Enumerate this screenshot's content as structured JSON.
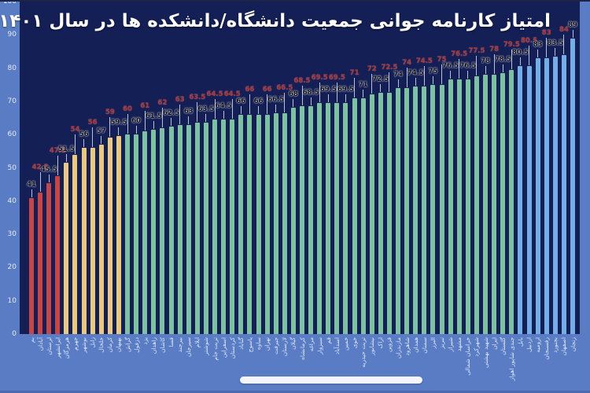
{
  "title": "امتیاز کارنامه جوانی جمعیت دانشگاه/دانشکده ها در سال ۱۴۰۱",
  "colors": {
    "background": "#5a7cc5",
    "plot_bg": "#131f55",
    "bar_red": "#c84545",
    "bar_yellow": "#eac97f",
    "bar_green": "#7cc2a0",
    "bar_blue": "#74aee8",
    "value_label_black": "#0b0b16",
    "value_label_red": "#b23232",
    "axis_label": "#e6ecf8",
    "x_label": "#d9e6fa",
    "title_color": "#ffffff",
    "scrollbar_color": "#f3f5fb"
  },
  "chart_data": {
    "type": "bar",
    "title": "امتیاز کارنامه جوانی جمعیت دانشگاه/دانشکده ها در سال ۱۴۰۱",
    "xlabel": "",
    "ylabel": "",
    "ylim": [
      0,
      100
    ],
    "y_ticks": [
      0,
      10,
      20,
      30,
      40,
      50,
      60,
      70,
      80,
      90,
      100
    ],
    "grid": false,
    "legend": null,
    "sort": "ascending",
    "color_groups_note": "bars colored by score band: red <50, yellow 50-59.5, green 60-79.5, blue >=80; value labels alternate black(low)/red(raised)",
    "bars": [
      {
        "label": "بم",
        "value": 41,
        "group": "red",
        "label_style": "black"
      },
      {
        "label": "آبادان",
        "value": 42.5,
        "group": "red",
        "label_style": "red"
      },
      {
        "label": "لرستان",
        "value": 45.5,
        "group": "red",
        "label_style": "black"
      },
      {
        "label": "ایرانشهر",
        "value": 47.5,
        "group": "red",
        "label_style": "red"
      },
      {
        "label": "هرمزگان",
        "value": 51.5,
        "group": "yellow",
        "label_style": "black"
      },
      {
        "label": "جهرم",
        "value": 54,
        "group": "yellow",
        "label_style": "red"
      },
      {
        "label": "بوشهر",
        "value": 56,
        "group": "yellow",
        "label_style": "black"
      },
      {
        "label": "زابل",
        "value": 56,
        "group": "yellow",
        "label_style": "red"
      },
      {
        "label": "خلخال",
        "value": 57,
        "group": "yellow",
        "label_style": "black"
      },
      {
        "label": "کرمان",
        "value": 59,
        "group": "yellow",
        "label_style": "red"
      },
      {
        "label": "بهبهان",
        "value": 59.5,
        "group": "yellow",
        "label_style": "black"
      },
      {
        "label": "گراش",
        "value": 60,
        "group": "green",
        "label_style": "red"
      },
      {
        "label": "دزفول",
        "value": 60,
        "group": "green",
        "label_style": "black"
      },
      {
        "label": "یزد",
        "value": 61,
        "group": "green",
        "label_style": "red"
      },
      {
        "label": "زاهدان",
        "value": 61.5,
        "group": "green",
        "label_style": "black"
      },
      {
        "label": "کاشان",
        "value": 62,
        "group": "green",
        "label_style": "red"
      },
      {
        "label": "فسا",
        "value": 62.5,
        "group": "green",
        "label_style": "black"
      },
      {
        "label": "بیرجند",
        "value": 63,
        "group": "green",
        "label_style": "red"
      },
      {
        "label": "سیرجان",
        "value": 63,
        "group": "green",
        "label_style": "black"
      },
      {
        "label": "ایلام",
        "value": 63.5,
        "group": "green",
        "label_style": "red"
      },
      {
        "label": "شوشتر",
        "value": 63.5,
        "group": "green",
        "label_style": "black"
      },
      {
        "label": "تربت جام",
        "value": 64.5,
        "group": "green",
        "label_style": "red"
      },
      {
        "label": "اسفراین",
        "value": 64.5,
        "group": "green",
        "label_style": "black"
      },
      {
        "label": "کردستان",
        "value": 64.5,
        "group": "green",
        "label_style": "red"
      },
      {
        "label": "گناباد",
        "value": 66,
        "group": "green",
        "label_style": "black"
      },
      {
        "label": "یاسوج",
        "value": 66,
        "group": "green",
        "label_style": "red"
      },
      {
        "label": "ساوه",
        "value": 66,
        "group": "green",
        "label_style": "black"
      },
      {
        "label": "تهران",
        "value": 66,
        "group": "green",
        "label_style": "red"
      },
      {
        "label": "جیرفت",
        "value": 66.5,
        "group": "green",
        "label_style": "black"
      },
      {
        "label": "لارستان",
        "value": 66.5,
        "group": "green",
        "label_style": "red"
      },
      {
        "label": "گیلان",
        "value": 68,
        "group": "green",
        "label_style": "black"
      },
      {
        "label": "کرمانشاه",
        "value": 68.5,
        "group": "green",
        "label_style": "red"
      },
      {
        "label": "مراغه",
        "value": 68.5,
        "group": "green",
        "label_style": "black"
      },
      {
        "label": "سبزوار",
        "value": 69.5,
        "group": "green",
        "label_style": "red"
      },
      {
        "label": "قم",
        "value": 69.5,
        "group": "green",
        "label_style": "black"
      },
      {
        "label": "اسدآباد",
        "value": 69.5,
        "group": "green",
        "label_style": "red"
      },
      {
        "label": "خمین",
        "value": 69.5,
        "group": "green",
        "label_style": "black"
      },
      {
        "label": "خوی",
        "value": 71,
        "group": "green",
        "label_style": "red"
      },
      {
        "label": "تربت حیدریه",
        "value": 71,
        "group": "green",
        "label_style": "black"
      },
      {
        "label": "نیشابور",
        "value": 72,
        "group": "green",
        "label_style": "red"
      },
      {
        "label": "اراک",
        "value": 72.5,
        "group": "green",
        "label_style": "black"
      },
      {
        "label": "قزوین",
        "value": 72.5,
        "group": "green",
        "label_style": "red"
      },
      {
        "label": "مازندران",
        "value": 74,
        "group": "green",
        "label_style": "black"
      },
      {
        "label": "شاهرود",
        "value": 74,
        "group": "green",
        "label_style": "red"
      },
      {
        "label": "همدان",
        "value": 74.5,
        "group": "green",
        "label_style": "black"
      },
      {
        "label": "سمنان",
        "value": 74.5,
        "group": "green",
        "label_style": "red"
      },
      {
        "label": "البرز",
        "value": 75,
        "group": "green",
        "label_style": "black"
      },
      {
        "label": "تبریز",
        "value": 75,
        "group": "green",
        "label_style": "red"
      },
      {
        "label": "شیراز",
        "value": 76.5,
        "group": "green",
        "label_style": "black"
      },
      {
        "label": "مشهد",
        "value": 76.5,
        "group": "green",
        "label_style": "red"
      },
      {
        "label": "خراسان شمالی",
        "value": 76.5,
        "group": "green",
        "label_style": "black"
      },
      {
        "label": "شهرکرد",
        "value": 77.5,
        "group": "green",
        "label_style": "red"
      },
      {
        "label": "شهید بهشتی",
        "value": 78,
        "group": "green",
        "label_style": "black"
      },
      {
        "label": "ایران",
        "value": 78,
        "group": "green",
        "label_style": "red"
      },
      {
        "label": "گلستان",
        "value": 78.5,
        "group": "green",
        "label_style": "black"
      },
      {
        "label": "جندی شاپور اهواز",
        "value": 79.5,
        "group": "green",
        "label_style": "red"
      },
      {
        "label": "بابل",
        "value": 80.5,
        "group": "blue",
        "label_style": "black"
      },
      {
        "label": "اردبیل",
        "value": 80.5,
        "group": "blue",
        "label_style": "red"
      },
      {
        "label": "ارومیه",
        "value": 83,
        "group": "blue",
        "label_style": "black"
      },
      {
        "label": "رفسنجان",
        "value": 83,
        "group": "blue",
        "label_style": "red"
      },
      {
        "label": "بجنورد",
        "value": 83.5,
        "group": "blue",
        "label_style": "black"
      },
      {
        "label": "اصفهان",
        "value": 84,
        "group": "blue",
        "label_style": "red"
      },
      {
        "label": "زنجان",
        "value": 89,
        "group": "blue",
        "label_style": "black"
      }
    ]
  },
  "scrollbar": {
    "present": true
  }
}
